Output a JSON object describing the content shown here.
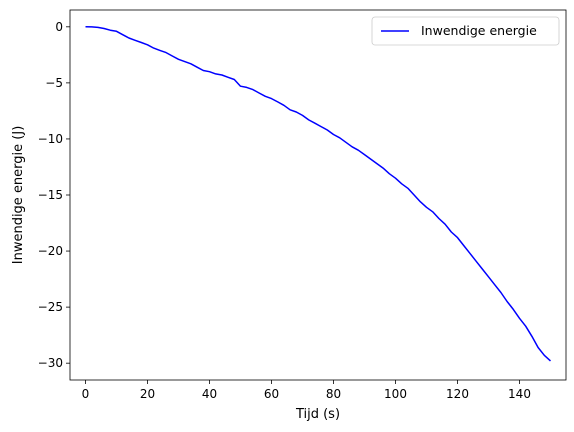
{
  "chart_data": {
    "type": "line",
    "title": "",
    "xlabel": "Tijd (s)",
    "ylabel": "Inwendige energie (J)",
    "xlim": [
      -5,
      155
    ],
    "ylim": [
      -31.5,
      1.5
    ],
    "xticks": [
      0,
      20,
      40,
      60,
      80,
      100,
      120,
      140
    ],
    "yticks": [
      0,
      -5,
      -10,
      -15,
      -20,
      -25,
      -30
    ],
    "grid": false,
    "legend": "top-right",
    "series": [
      {
        "name": "Inwendige energie",
        "color": "#0000ff",
        "x": [
          0,
          2,
          4,
          6,
          8,
          10,
          12,
          14,
          16,
          18,
          20,
          22,
          24,
          26,
          28,
          30,
          32,
          34,
          36,
          38,
          40,
          42,
          44,
          46,
          48,
          50,
          52,
          54,
          56,
          58,
          60,
          62,
          64,
          66,
          68,
          70,
          72,
          74,
          76,
          78,
          80,
          82,
          84,
          86,
          88,
          90,
          92,
          94,
          96,
          98,
          100,
          102,
          104,
          106,
          108,
          110,
          112,
          114,
          116,
          118,
          120,
          122,
          124,
          126,
          128,
          130,
          132,
          134,
          136,
          138,
          140,
          142,
          144,
          146,
          148,
          150
        ],
        "y": [
          0.0,
          -0.01,
          -0.05,
          -0.15,
          -0.3,
          -0.4,
          -0.7,
          -1.0,
          -1.2,
          -1.4,
          -1.6,
          -1.9,
          -2.1,
          -2.3,
          -2.6,
          -2.9,
          -3.1,
          -3.3,
          -3.6,
          -3.9,
          -4.0,
          -4.2,
          -4.3,
          -4.5,
          -4.7,
          -5.3,
          -5.4,
          -5.6,
          -5.9,
          -6.2,
          -6.4,
          -6.7,
          -7.0,
          -7.4,
          -7.6,
          -7.9,
          -8.3,
          -8.6,
          -8.9,
          -9.2,
          -9.6,
          -9.9,
          -10.3,
          -10.7,
          -11.0,
          -11.4,
          -11.8,
          -12.2,
          -12.6,
          -13.1,
          -13.5,
          -14.0,
          -14.4,
          -15.0,
          -15.6,
          -16.1,
          -16.5,
          -17.1,
          -17.6,
          -18.3,
          -18.8,
          -19.5,
          -20.2,
          -20.9,
          -21.6,
          -22.3,
          -23.0,
          -23.7,
          -24.5,
          -25.2,
          -26.0,
          -26.7,
          -27.6,
          -28.6,
          -29.3,
          -29.8
        ]
      }
    ]
  }
}
